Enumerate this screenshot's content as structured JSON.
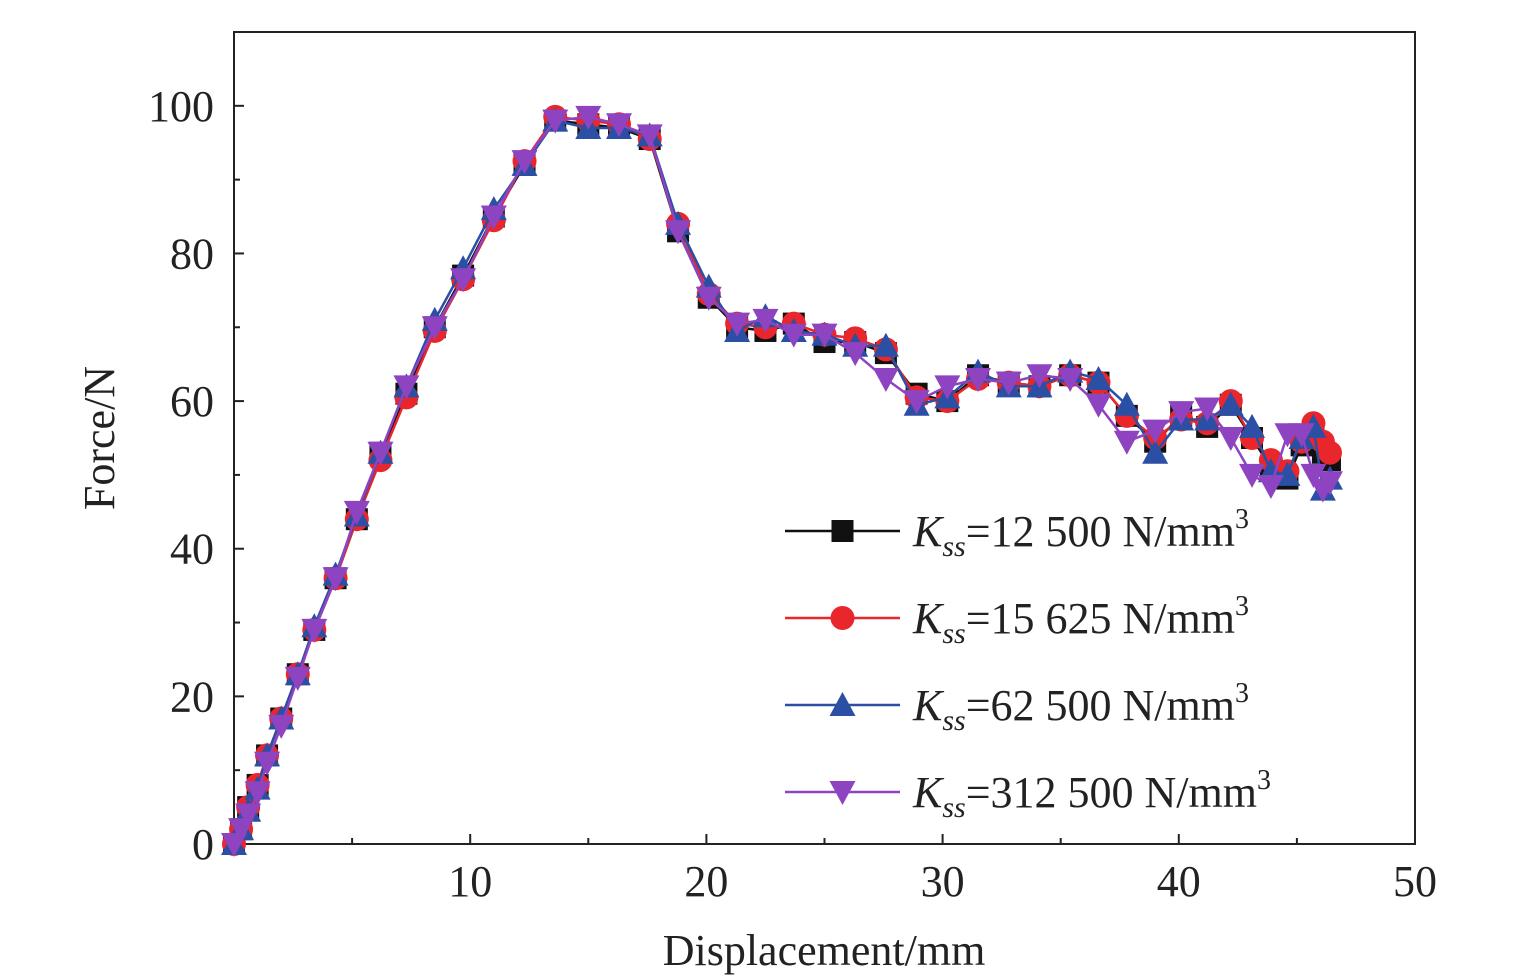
{
  "chart_data": {
    "type": "line",
    "xlabel": "Displacement/mm",
    "ylabel": "Force/N",
    "xlim": [
      0,
      50
    ],
    "ylim": [
      0,
      110
    ],
    "x_ticks": [
      10,
      20,
      30,
      40,
      50
    ],
    "x_tick_labels": [
      "10",
      "20",
      "30",
      "40",
      "50"
    ],
    "y_ticks": [
      0,
      20,
      40,
      60,
      80,
      100
    ],
    "y_tick_labels": [
      "0",
      "20",
      "40",
      "60",
      "80",
      "100"
    ],
    "grid": false,
    "legend_position": "lower-right",
    "series": [
      {
        "name": "K_ss=12 500 N/mm3",
        "legend": {
          "symbol": "K",
          "subscript": "ss",
          "text": "=12 500 N/mm",
          "superscript": "3"
        },
        "color": "#111111",
        "marker": "square",
        "x": [
          0,
          0.3,
          0.6,
          1,
          1.4,
          2,
          2.7,
          3.4,
          4.3,
          5.2,
          6.2,
          7.3,
          8.5,
          9.7,
          11,
          12.3,
          13.6,
          15,
          16.3,
          17.6,
          18.8,
          20.1,
          21.3,
          22.5,
          23.7,
          25,
          26.3,
          27.6,
          28.9,
          30.2,
          31.5,
          32.8,
          34.1,
          35.4,
          36.6,
          37.8,
          39,
          40.1,
          41.2,
          42.2,
          43.1,
          43.9,
          44.6,
          45.2,
          45.7,
          46.1,
          46.4
        ],
        "y": [
          0,
          2,
          5,
          8,
          12,
          17,
          23,
          29,
          36,
          44,
          53,
          61,
          70,
          77,
          85,
          92,
          98,
          97.5,
          97,
          95.5,
          83,
          74,
          70,
          69.5,
          70.5,
          68,
          68,
          66.5,
          61,
          60,
          63.5,
          62.5,
          62,
          63.5,
          62.5,
          58,
          54.5,
          58,
          56.5,
          59.5,
          55,
          51,
          49.5,
          54,
          56,
          53,
          52
        ]
      },
      {
        "name": "K_ss=15 625 N/mm3",
        "legend": {
          "symbol": "K",
          "subscript": "ss",
          "text": "=15 625 N/mm",
          "superscript": "3"
        },
        "color": "#e8262b",
        "marker": "circle",
        "x": [
          0,
          0.3,
          0.6,
          1,
          1.4,
          2,
          2.7,
          3.4,
          4.3,
          5.2,
          6.2,
          7.3,
          8.5,
          9.7,
          11,
          12.3,
          13.6,
          15,
          16.3,
          17.6,
          18.8,
          20.1,
          21.3,
          22.5,
          23.7,
          25,
          26.3,
          27.6,
          28.9,
          30.2,
          31.5,
          32.8,
          34.1,
          35.4,
          36.6,
          37.8,
          39,
          40.1,
          41.2,
          42.2,
          43.1,
          43.9,
          44.6,
          45.2,
          45.7,
          46.1,
          46.4
        ],
        "y": [
          0,
          2,
          5,
          8,
          12,
          17,
          23,
          29,
          36,
          44,
          52,
          60.5,
          69.5,
          76.5,
          84.5,
          92.5,
          98.5,
          98,
          97.5,
          95.5,
          84,
          74.5,
          70.5,
          70,
          70.5,
          69,
          68.5,
          67,
          60.5,
          60,
          63,
          62.5,
          62,
          63.5,
          62.5,
          58,
          55,
          57.5,
          57,
          60,
          55,
          52,
          50.5,
          54.5,
          57,
          54.5,
          53
        ]
      },
      {
        "name": "K_ss=62 500 N/mm3",
        "legend": {
          "symbol": "K",
          "subscript": "ss",
          "text": "=62 500 N/mm",
          "superscript": "3"
        },
        "color": "#2a4fa5",
        "marker": "triangle-up",
        "x": [
          0,
          0.3,
          0.6,
          1,
          1.4,
          2,
          2.7,
          3.4,
          4.3,
          5.2,
          6.2,
          7.3,
          8.5,
          9.7,
          11,
          12.3,
          13.6,
          15,
          16.3,
          17.6,
          18.8,
          20.1,
          21.3,
          22.5,
          23.7,
          25,
          26.3,
          27.6,
          28.9,
          30.2,
          31.5,
          32.8,
          34.1,
          35.4,
          36.6,
          37.8,
          39,
          40.1,
          41.2,
          42.2,
          43.1,
          43.9,
          44.6,
          45.2,
          45.7,
          46.1,
          46.4
        ],
        "y": [
          0,
          2,
          4.5,
          7.5,
          12,
          17,
          23,
          29.5,
          36.5,
          44.5,
          53,
          62,
          71,
          78,
          86,
          92,
          98,
          97,
          97,
          96,
          84,
          75.5,
          69.5,
          71.5,
          69.5,
          69,
          67.5,
          67.5,
          59.5,
          60.5,
          64,
          62,
          62,
          64,
          63,
          59.5,
          53,
          57.5,
          57.5,
          59.5,
          56.5,
          50.5,
          50,
          55,
          56.5,
          48,
          49.5
        ]
      },
      {
        "name": "K_ss=312 500 N/mm3",
        "legend": {
          "symbol": "K",
          "subscript": "ss",
          "text": "=312 500 N/mm",
          "superscript": "3"
        },
        "color": "#8e44c1",
        "marker": "triangle-down",
        "x": [
          0,
          0.3,
          0.6,
          1,
          1.4,
          2,
          2.7,
          3.4,
          4.3,
          5.2,
          6.2,
          7.3,
          8.5,
          9.7,
          11,
          12.3,
          13.6,
          15,
          16.3,
          17.6,
          18.8,
          20.1,
          21.3,
          22.5,
          23.7,
          25,
          26.3,
          27.6,
          28.9,
          30.2,
          31.5,
          32.8,
          34.1,
          35.4,
          36.6,
          37.8,
          39,
          40.1,
          41.2,
          42.2,
          43.1,
          43.9,
          44.6,
          45.2,
          45.7,
          46.1,
          46.4
        ],
        "y": [
          0,
          2,
          4,
          7,
          11,
          16,
          22.5,
          29,
          36,
          45,
          53,
          62,
          70,
          76.5,
          85,
          92.5,
          98,
          98.5,
          97.5,
          96,
          83,
          74,
          70.5,
          71,
          69,
          69,
          66.5,
          63,
          60,
          62,
          63,
          62.5,
          63.5,
          63,
          59.5,
          54.5,
          56,
          58.5,
          59,
          55,
          50,
          48.5,
          55.5,
          55.5,
          50,
          48,
          49
        ]
      }
    ]
  }
}
